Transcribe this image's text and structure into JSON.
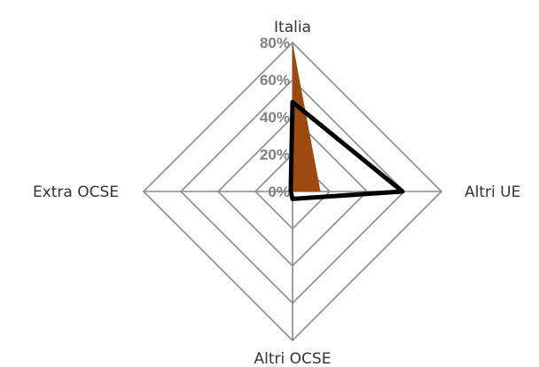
{
  "chart_data": {
    "type": "radar",
    "categories": [
      "Italia",
      "Altri UE",
      "Altri OCSE",
      "Extra OCSE"
    ],
    "series": [
      {
        "values": [
          0.8,
          0.15,
          0.0,
          0.0
        ],
        "fill": "#9c4a0e",
        "style": "filled-area"
      },
      {
        "values": [
          0.48,
          0.59,
          0.04,
          0.01
        ],
        "stroke": "#000000",
        "style": "line"
      }
    ],
    "rlim": [
      0,
      0.8
    ],
    "ticks": [
      "0%",
      "20%",
      "40%",
      "60%",
      "80%"
    ],
    "grid": true,
    "legend": "none"
  }
}
